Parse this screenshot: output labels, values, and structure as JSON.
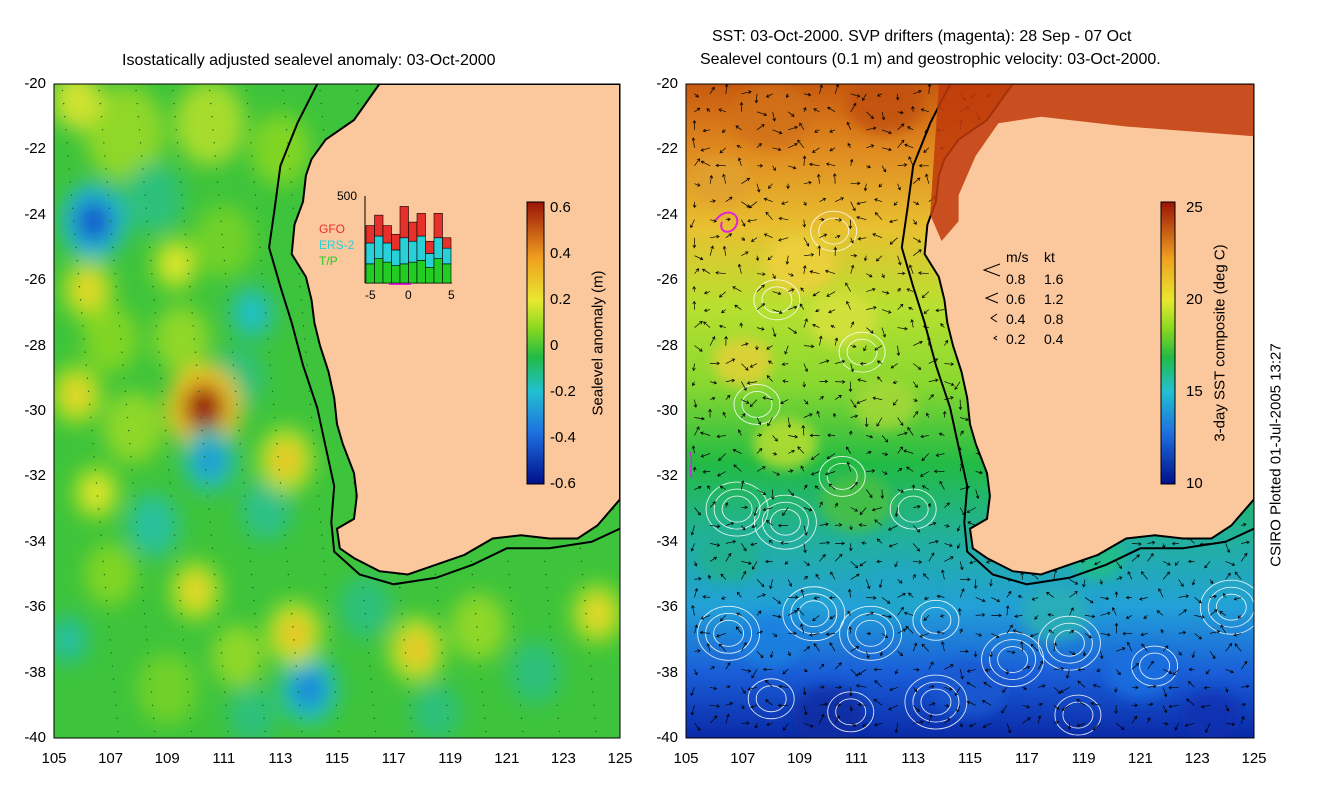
{
  "left_panel": {
    "title": "Isostatically adjusted sealevel anomaly: 03-Oct-2000",
    "colorbar_label": "Sealevel anomaly (m)",
    "colorbar_ticks": [
      "0.6",
      "0.4",
      "0.2",
      "0",
      "-0.2",
      "-0.4",
      "-0.6"
    ],
    "satellites": [
      {
        "name": "GFO",
        "color": "#e8302a"
      },
      {
        "name": "ERS-2",
        "color": "#28d0d8"
      },
      {
        "name": "T/P",
        "color": "#22cc22"
      }
    ],
    "histogram": {
      "y_max_label": "500",
      "x_ticks": [
        "-5",
        "0",
        "5"
      ],
      "bars": [
        {
          "tp": 110,
          "ers2": 120,
          "gfo": 100
        },
        {
          "tp": 140,
          "ers2": 130,
          "gfo": 120
        },
        {
          "tp": 120,
          "ers2": 110,
          "gfo": 100
        },
        {
          "tp": 100,
          "ers2": 90,
          "gfo": 90
        },
        {
          "tp": 110,
          "ers2": 150,
          "gfo": 180
        },
        {
          "tp": 120,
          "ers2": 120,
          "gfo": 110
        },
        {
          "tp": 130,
          "ers2": 140,
          "gfo": 130
        },
        {
          "tp": 90,
          "ers2": 80,
          "gfo": 70
        },
        {
          "tp": 140,
          "ers2": 120,
          "gfo": 140
        },
        {
          "tp": 110,
          "ers2": 90,
          "gfo": 60
        }
      ]
    }
  },
  "right_panel": {
    "title_line1": "SST: 03-Oct-2000. SVP drifters (magenta): 28 Sep - 07 Oct",
    "title_line2": "Sealevel contours (0.1 m) and geostrophic velocity: 03-Oct-2000.",
    "colorbar_label": "3-day SST composite (deg C)",
    "colorbar_ticks": [
      "25",
      "20",
      "15",
      "10"
    ],
    "velocity_legend": {
      "header_ms": "m/s",
      "header_kt": "kt",
      "rows": [
        {
          "ms": "0.8",
          "kt": "1.6"
        },
        {
          "ms": "0.6",
          "kt": "1.2"
        },
        {
          "ms": "0.4",
          "kt": "0.8"
        },
        {
          "ms": "0.2",
          "kt": "0.4"
        }
      ]
    }
  },
  "axes": {
    "lat_labels": [
      "-20",
      "-22",
      "-24",
      "-26",
      "-28",
      "-30",
      "-32",
      "-34",
      "-36",
      "-38",
      "-40"
    ],
    "lon_labels": [
      "105",
      "107",
      "109",
      "111",
      "113",
      "115",
      "117",
      "119",
      "121",
      "123",
      "125"
    ]
  },
  "map_data": {
    "type": "heatmap",
    "lon_range": [
      105,
      125
    ],
    "lat_range": [
      -40,
      -20
    ],
    "ssh_anomalies": [
      {
        "lon": 110.3,
        "lat": -29.9,
        "value": 0.6
      },
      {
        "lon": 106.4,
        "lat": -24.2,
        "value": -0.45
      },
      {
        "lon": 114.0,
        "lat": -38.5,
        "value": -0.35
      },
      {
        "lon": 110.5,
        "lat": -31.5,
        "value": -0.3
      },
      {
        "lon": 106.2,
        "lat": -26.3,
        "value": 0.25
      },
      {
        "lon": 105.8,
        "lat": -29.5,
        "value": 0.25
      },
      {
        "lon": 109.3,
        "lat": -25.5,
        "value": 0.2
      },
      {
        "lon": 113.2,
        "lat": -31.5,
        "value": 0.3
      },
      {
        "lon": 113.5,
        "lat": -36.8,
        "value": 0.3
      },
      {
        "lon": 117.8,
        "lat": -37.3,
        "value": 0.3
      },
      {
        "lon": 110.0,
        "lat": -35.5,
        "value": 0.25
      },
      {
        "lon": 106.5,
        "lat": -32.5,
        "value": 0.2
      },
      {
        "lon": 124.2,
        "lat": -36.2,
        "value": 0.25
      },
      {
        "lon": 112.0,
        "lat": -27.0,
        "value": -0.2
      },
      {
        "lon": 105.5,
        "lat": -37.0,
        "value": -0.15
      }
    ]
  },
  "footer": {
    "plot_stamp": "CSIRO Plotted 01-Jul-2005 13:27"
  }
}
